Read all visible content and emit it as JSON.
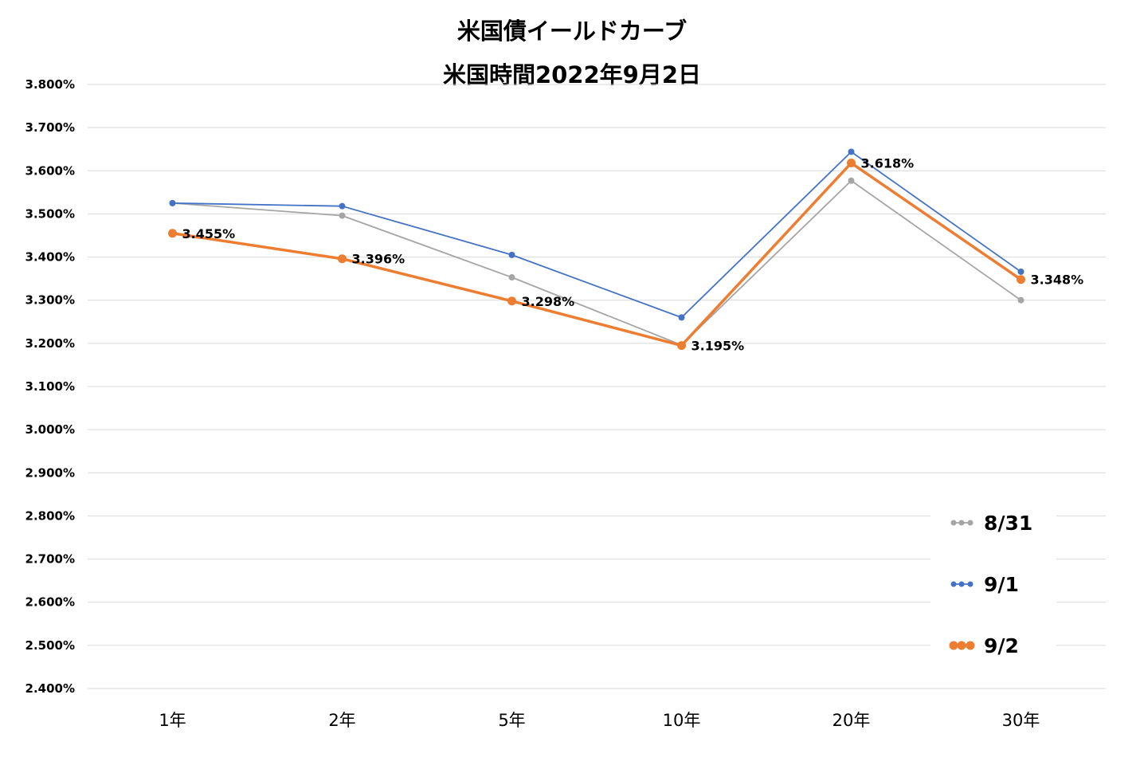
{
  "chart_data": {
    "type": "line",
    "title": "米国債イールドカーブ",
    "subtitle": "米国時間2022年9月2日",
    "categories": [
      "1年",
      "2年",
      "5年",
      "10年",
      "20年",
      "30年"
    ],
    "ylim": [
      2.4,
      3.8
    ],
    "yticks": [
      3.8,
      3.7,
      3.6,
      3.5,
      3.4,
      3.3,
      3.2,
      3.1,
      3.0,
      2.9,
      2.8,
      2.7,
      2.6,
      2.5,
      2.4
    ],
    "ytick_labels": [
      "3.800%",
      "3.700%",
      "3.600%",
      "3.500%",
      "3.400%",
      "3.300%",
      "3.200%",
      "3.100%",
      "3.000%",
      "2.900%",
      "2.800%",
      "2.700%",
      "2.600%",
      "2.500%",
      "2.400%"
    ],
    "grid": true,
    "legend_position": "bottom-right",
    "series": [
      {
        "name": "8/31",
        "color": "#a5a5a5",
        "values": [
          3.525,
          3.496,
          3.353,
          3.196,
          3.577,
          3.3
        ],
        "data_labels": []
      },
      {
        "name": "9/1",
        "color": "#4472c4",
        "values": [
          3.525,
          3.518,
          3.405,
          3.26,
          3.644,
          3.366
        ],
        "data_labels": []
      },
      {
        "name": "9/2",
        "color": "#ed7d31",
        "values": [
          3.455,
          3.396,
          3.298,
          3.195,
          3.618,
          3.348
        ],
        "data_labels": [
          "3.455%",
          "3.396%",
          "3.298%",
          "3.195%",
          "3.618%",
          "3.348%"
        ]
      }
    ]
  }
}
